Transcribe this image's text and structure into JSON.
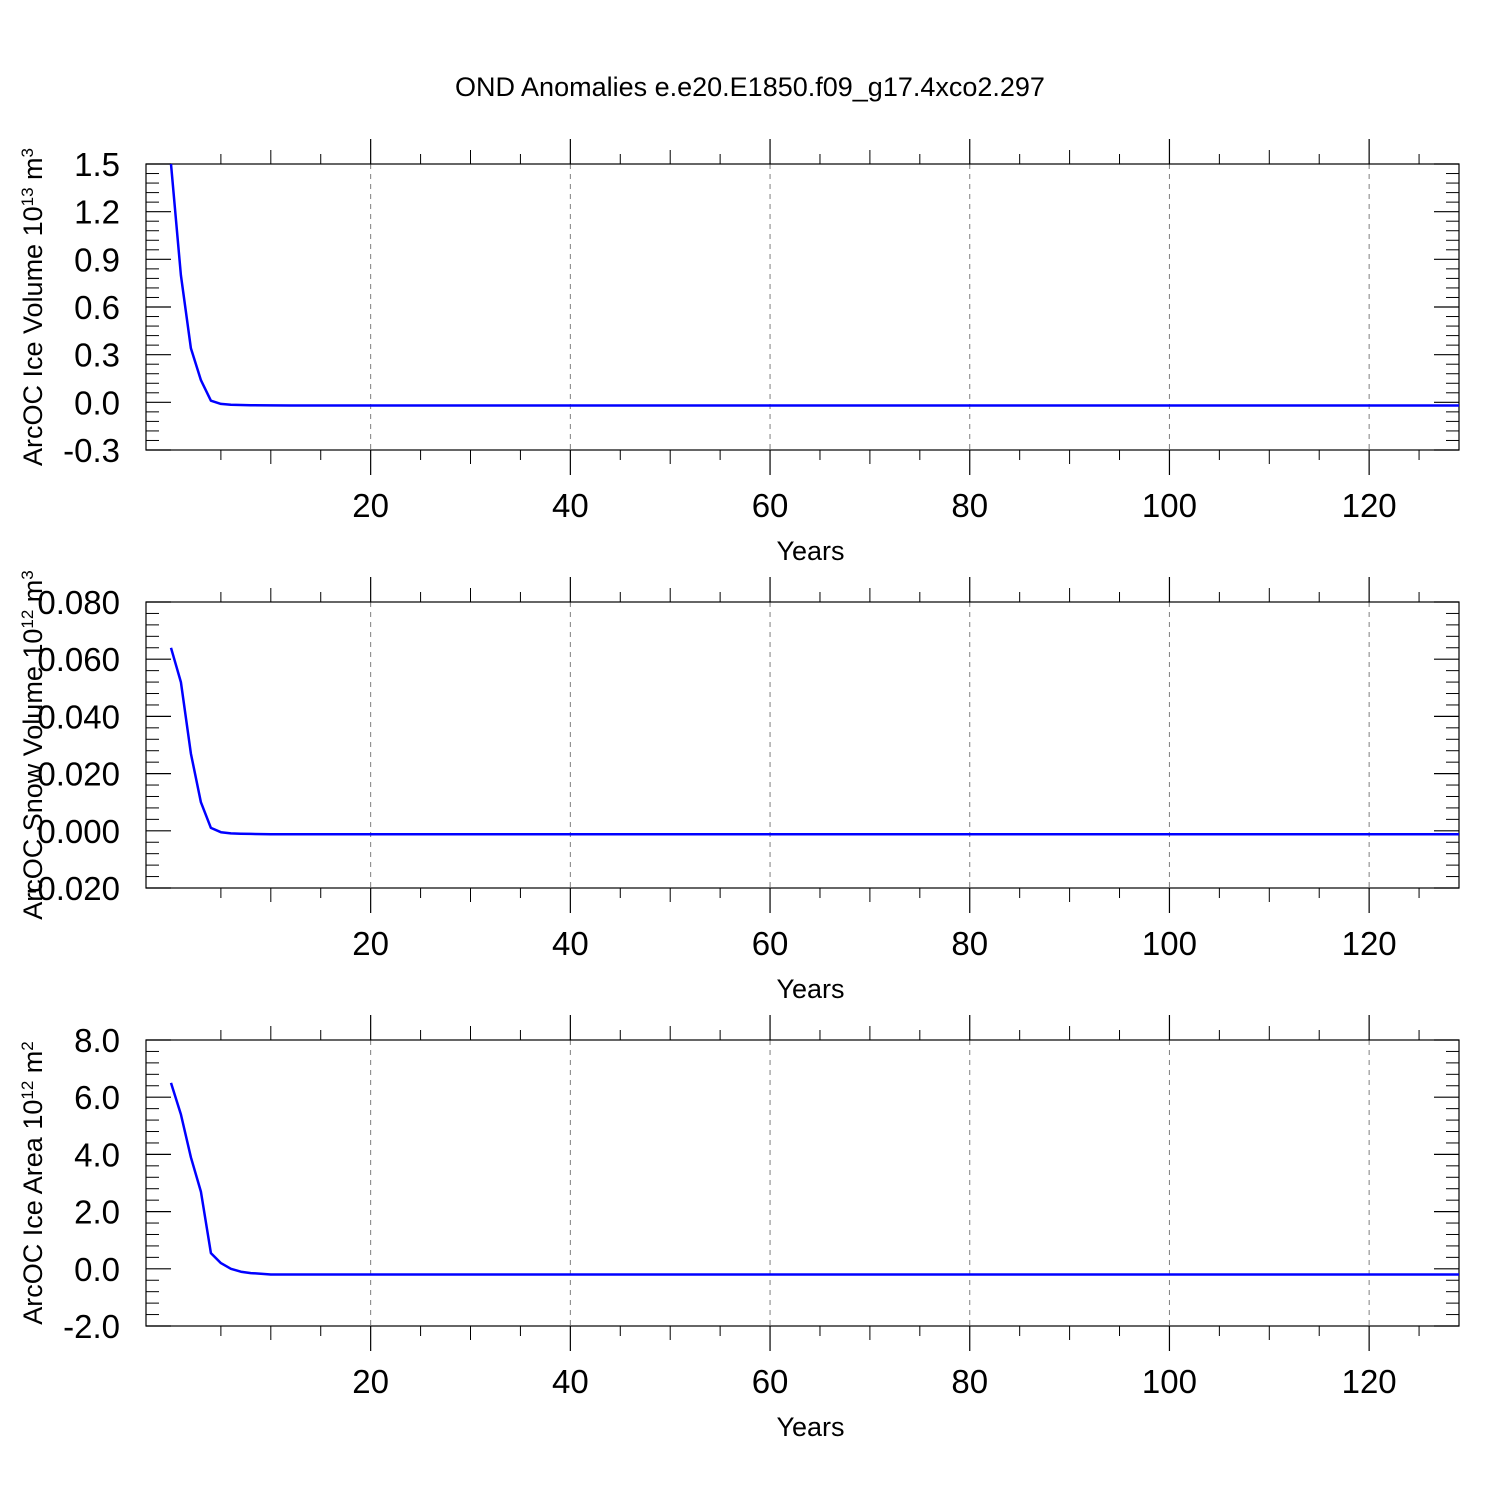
{
  "title": "OND Anomalies e.e20.E1850.f09_g17.4xco2.297",
  "colors": {
    "line": "#0000ff",
    "axis": "#000000",
    "grid": "#7f7f7f"
  },
  "chart_data": [
    {
      "type": "line",
      "xlabel": "Years",
      "ylabel": {
        "text": "ArcOC Ice Volume 10",
        "sup": "13",
        "unit": " m",
        "unit_sup": "3"
      },
      "xlim": [
        -2.5,
        129
      ],
      "ylim": [
        -0.3,
        1.5
      ],
      "x_ticks": [
        20,
        40,
        60,
        80,
        100,
        120
      ],
      "x_tick_labels": [
        "20",
        "40",
        "60",
        "80",
        "100",
        "120"
      ],
      "y_ticks": [
        -0.3,
        0.0,
        0.3,
        0.6,
        0.9,
        1.2,
        1.5
      ],
      "y_tick_labels": [
        "-0.3",
        "0.0",
        "0.3",
        "0.6",
        "0.9",
        "1.2",
        "1.5"
      ],
      "grid": "vertical dashed at major x ticks",
      "series": [
        {
          "x": [
            0,
            1,
            2,
            3,
            4,
            5,
            6,
            7,
            8,
            10,
            12,
            15,
            20,
            40,
            60,
            80,
            100,
            120,
            129
          ],
          "y": [
            1.5,
            0.8,
            0.34,
            0.14,
            0.01,
            -0.01,
            -0.015,
            -0.017,
            -0.018,
            -0.019,
            -0.02,
            -0.02,
            -0.02,
            -0.02,
            -0.02,
            -0.02,
            -0.02,
            -0.02,
            -0.02
          ]
        }
      ]
    },
    {
      "type": "line",
      "xlabel": "Years",
      "ylabel": {
        "text": "ArcOC Snow Volume 10",
        "sup": "12",
        "unit": " m",
        "unit_sup": "3"
      },
      "xlim": [
        -2.5,
        129
      ],
      "ylim": [
        -0.02,
        0.08
      ],
      "x_ticks": [
        20,
        40,
        60,
        80,
        100,
        120
      ],
      "x_tick_labels": [
        "20",
        "40",
        "60",
        "80",
        "100",
        "120"
      ],
      "y_ticks": [
        -0.02,
        0.0,
        0.02,
        0.04,
        0.06,
        0.08
      ],
      "y_tick_labels": [
        "-0.020",
        "0.000",
        "0.020",
        "0.040",
        "0.060",
        "0.080"
      ],
      "grid": "vertical dashed at major x ticks",
      "series": [
        {
          "x": [
            0,
            1,
            2,
            3,
            4,
            5,
            6,
            7,
            8,
            10,
            12,
            15,
            20,
            40,
            60,
            80,
            100,
            120,
            129
          ],
          "y": [
            0.064,
            0.052,
            0.027,
            0.01,
            0.001,
            -0.0005,
            -0.0009,
            -0.001,
            -0.0011,
            -0.0012,
            -0.0012,
            -0.0012,
            -0.0012,
            -0.0012,
            -0.0012,
            -0.0012,
            -0.0012,
            -0.0012,
            -0.0012
          ]
        }
      ]
    },
    {
      "type": "line",
      "xlabel": "Years",
      "ylabel": {
        "text": "ArcOC Ice Area 10",
        "sup": "12",
        "unit": " m",
        "unit_sup": "2"
      },
      "xlim": [
        -2.5,
        129
      ],
      "ylim": [
        -2.0,
        8.0
      ],
      "x_ticks": [
        20,
        40,
        60,
        80,
        100,
        120
      ],
      "x_tick_labels": [
        "20",
        "40",
        "60",
        "80",
        "100",
        "120"
      ],
      "y_ticks": [
        -2.0,
        0.0,
        2.0,
        4.0,
        6.0,
        8.0
      ],
      "y_tick_labels": [
        "-2.0",
        "0.0",
        "2.0",
        "4.0",
        "6.0",
        "8.0"
      ],
      "grid": "vertical dashed at major x ticks",
      "series": [
        {
          "x": [
            0,
            1,
            2,
            3,
            4,
            5,
            6,
            7,
            8,
            9,
            10,
            12,
            15,
            20,
            40,
            60,
            80,
            100,
            120,
            129
          ],
          "y": [
            6.5,
            5.4,
            3.9,
            2.7,
            0.55,
            0.2,
            0.0,
            -0.1,
            -0.15,
            -0.17,
            -0.2,
            -0.2,
            -0.2,
            -0.2,
            -0.2,
            -0.2,
            -0.2,
            -0.2,
            -0.2,
            -0.2
          ]
        }
      ]
    }
  ]
}
